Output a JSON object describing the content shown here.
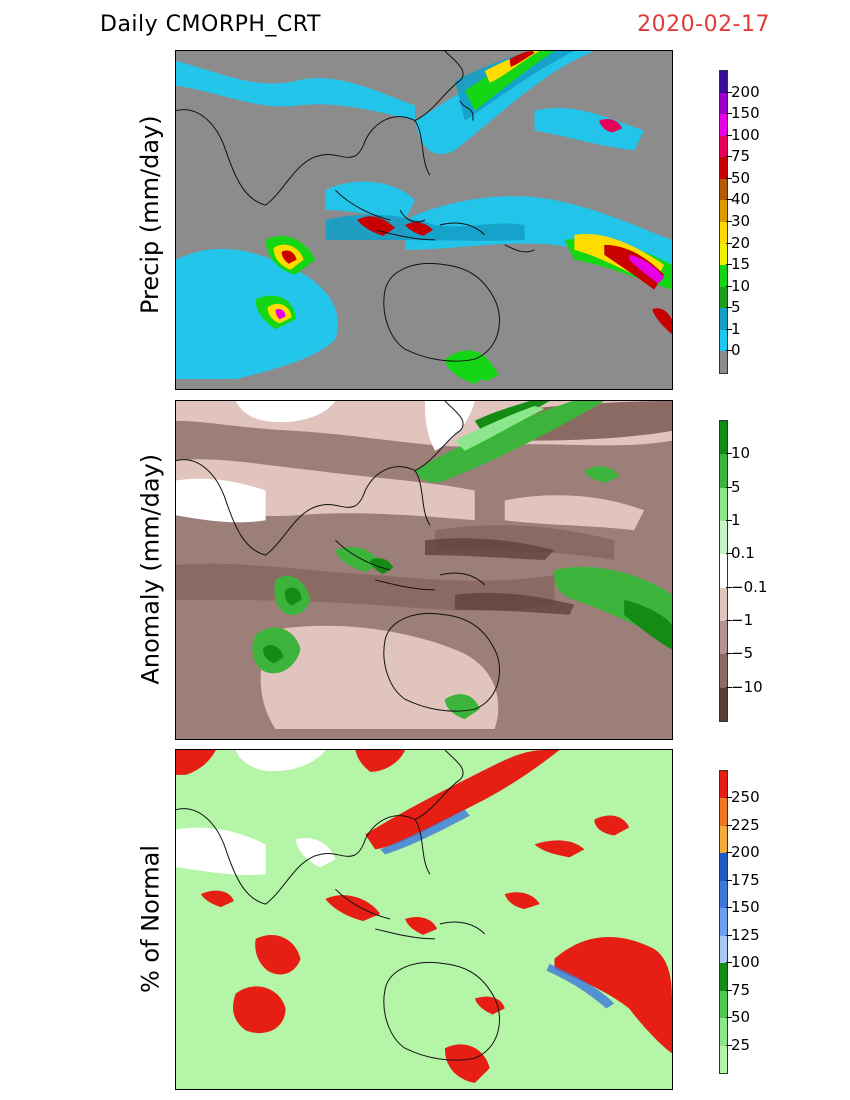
{
  "header": {
    "title": "Daily  CMORPH_CRT",
    "date": "2020-02-17",
    "date_color": "#e03a3a"
  },
  "panels": [
    {
      "id": "precip",
      "ylabel": "Precip  (mm/day)",
      "background": "#8c8c8c",
      "colorbar": {
        "labels": [
          "200",
          "150",
          "100",
          "75",
          "50",
          "40",
          "30",
          "20",
          "15",
          "10",
          "5",
          "1",
          "0"
        ],
        "colors": [
          "#3a0a9a",
          "#9a00c8",
          "#e600e6",
          "#e6005a",
          "#c80000",
          "#b45a00",
          "#dc9b00",
          "#ffdc00",
          "#f0f000",
          "#14d614",
          "#1e9e1e",
          "#14a0c8",
          "#1ec8f0",
          "#8c8c8c"
        ]
      }
    },
    {
      "id": "anomaly",
      "ylabel": "Anomaly  (mm/day)",
      "background": "#9c7f79",
      "colorbar": {
        "labels": [
          "10",
          "5",
          "1",
          "0.1",
          "−0.1",
          "−1",
          "−5",
          "−10"
        ],
        "colors": [
          "#148c14",
          "#3cb43c",
          "#8ce68c",
          "#c8f5c8",
          "#ffffff",
          "#e0c4bd",
          "#b49490",
          "#8c6a64",
          "#5a3c36"
        ]
      }
    },
    {
      "id": "percent",
      "ylabel": "% of  Normal",
      "background": "#b4f5a8",
      "colorbar": {
        "labels": [
          "250",
          "225",
          "200",
          "175",
          "150",
          "125",
          "100",
          "75",
          "50",
          "25"
        ],
        "colors": [
          "#e61e14",
          "#f0781e",
          "#f5aa3c",
          "#1e5ac8",
          "#3c78dc",
          "#6e9ef0",
          "#aac8f5",
          "#148c14",
          "#50c850",
          "#8ce68c",
          "#b4f5a8"
        ]
      }
    }
  ]
}
